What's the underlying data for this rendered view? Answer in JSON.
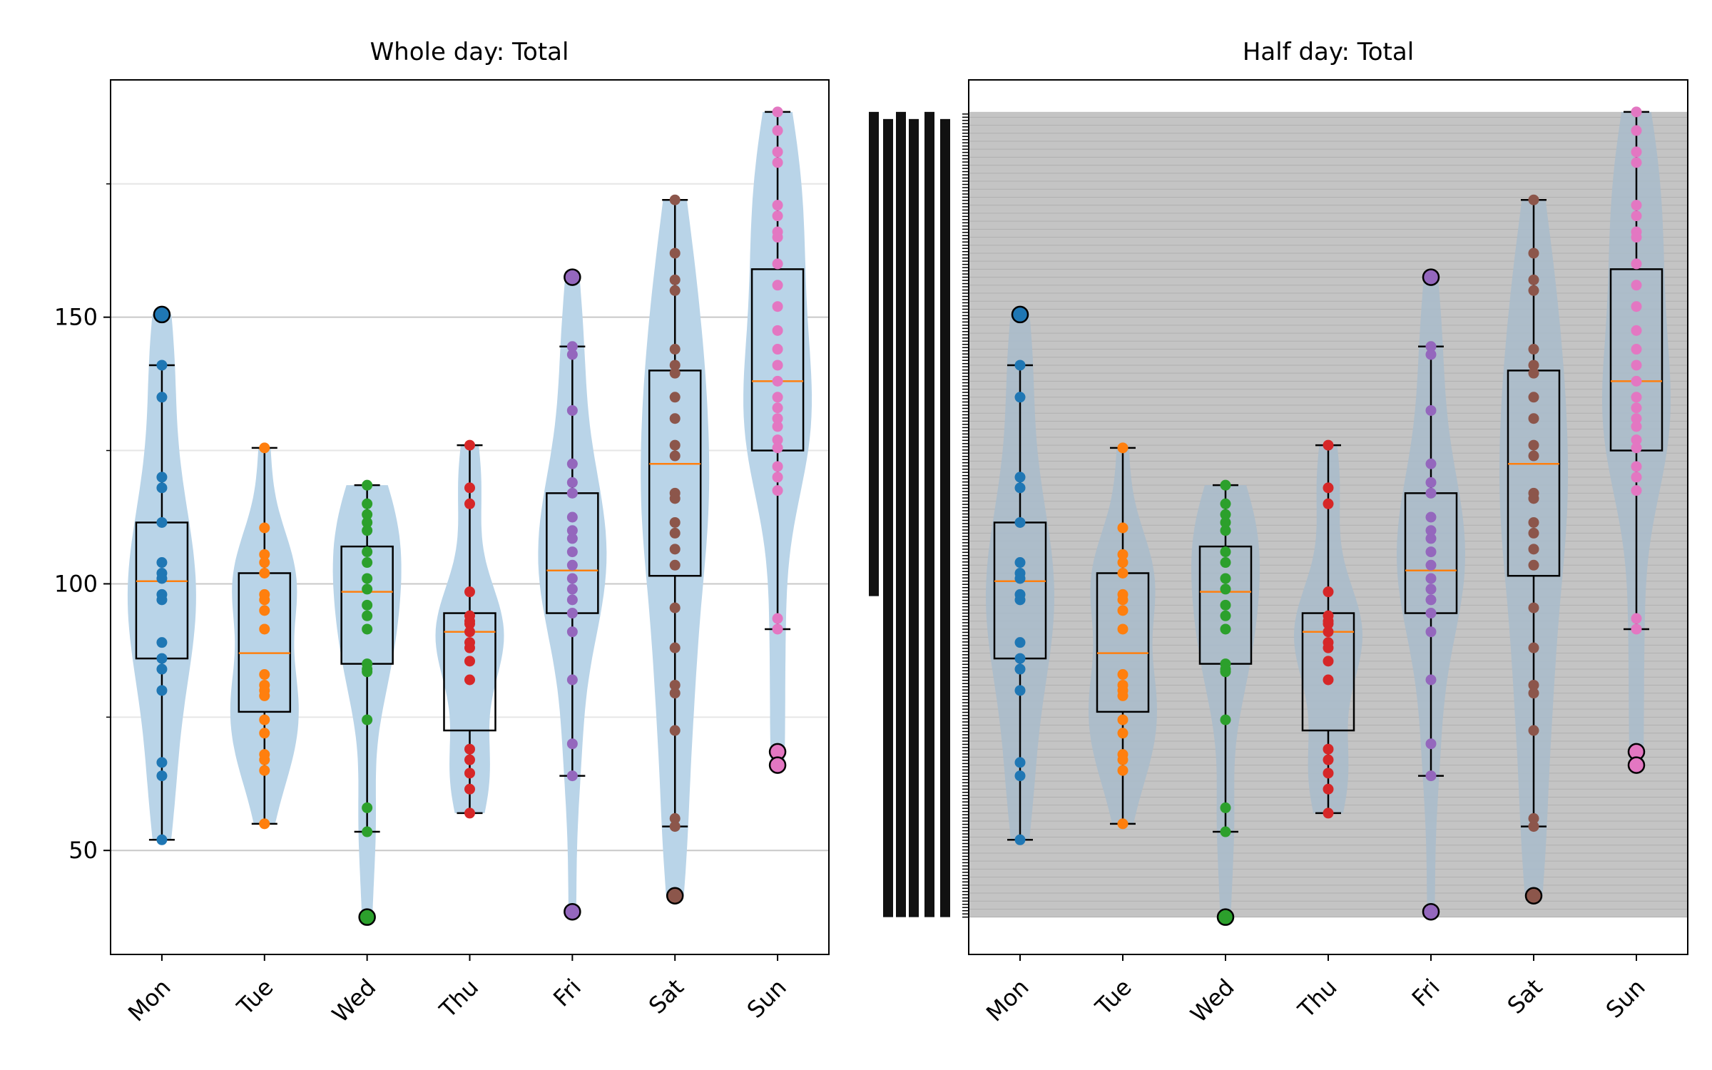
{
  "chart_data": [
    {
      "type": "box+violin+strip",
      "title": "Whole day: Total",
      "xlabel": "",
      "ylabel": "",
      "categories": [
        "Mon",
        "Tue",
        "Wed",
        "Thu",
        "Fri",
        "Sat",
        "Sun"
      ],
      "ylim": [
        30.5,
        194.5
      ],
      "yticks": [
        50,
        100,
        150
      ],
      "ytick_labels": [
        "50",
        "100",
        "150"
      ],
      "minor_yticks": [
        75,
        125,
        175
      ],
      "grid": "horizontal",
      "colors": [
        "#1f77b4",
        "#ff7f0e",
        "#2ca02c",
        "#d62728",
        "#9467bd",
        "#8c564b",
        "#e377c2"
      ],
      "violin_color": "#b9d4e8",
      "median_color": "#ff7f0e",
      "boxes": [
        {
          "q1": 86,
          "median": 100.5,
          "q3": 111.5,
          "whislo": 52,
          "whishi": 141,
          "outliers": [
            150.5
          ]
        },
        {
          "q1": 76,
          "median": 87,
          "q3": 102,
          "whislo": 55,
          "whishi": 125.5,
          "outliers": []
        },
        {
          "q1": 85,
          "median": 98.5,
          "q3": 107,
          "whislo": 53.5,
          "whishi": 118.5,
          "outliers": [
            37.5
          ]
        },
        {
          "q1": 72.5,
          "median": 91,
          "q3": 94.5,
          "whislo": 57,
          "whishi": 126,
          "outliers": []
        },
        {
          "q1": 94.5,
          "median": 102.5,
          "q3": 117,
          "whislo": 64,
          "whishi": 144.5,
          "outliers": [
            157.5,
            38.5
          ]
        },
        {
          "q1": 101.5,
          "median": 122.5,
          "q3": 140,
          "whislo": 54.5,
          "whishi": 172,
          "outliers": [
            41.5
          ]
        },
        {
          "q1": 125,
          "median": 138,
          "q3": 159,
          "whislo": 91.5,
          "whishi": 188.5,
          "outliers": [
            68.5,
            66
          ]
        }
      ],
      "points": [
        [
          150.5,
          141,
          135,
          120,
          118,
          111.5,
          104,
          102,
          101,
          98,
          97,
          89,
          86,
          84,
          80,
          66.5,
          64,
          52
        ],
        [
          125.5,
          110.5,
          105.5,
          104,
          102,
          98,
          97,
          95,
          91.5,
          83,
          81,
          80,
          79,
          74.5,
          72,
          68,
          67,
          65,
          55
        ],
        [
          118.5,
          115,
          113,
          111.5,
          110,
          106,
          104,
          101,
          99,
          96,
          94,
          91.5,
          85,
          84,
          83.5,
          74.5,
          58,
          53.5,
          37.5
        ],
        [
          126,
          118,
          115,
          98.5,
          94,
          93,
          92.5,
          91,
          89,
          88,
          85.5,
          82,
          69,
          67,
          64.5,
          61.5,
          57
        ],
        [
          157.5,
          144.5,
          143,
          132.5,
          122.5,
          119,
          117,
          112.5,
          110,
          108.5,
          106,
          103.5,
          101,
          99,
          97,
          94.5,
          91,
          82,
          70,
          64,
          38.5
        ],
        [
          172,
          162,
          157,
          155,
          144,
          141,
          139.5,
          135,
          131,
          126,
          124,
          117,
          116,
          111.5,
          109.5,
          106.5,
          103.5,
          95.5,
          88,
          81,
          79.5,
          72.5,
          56,
          54.5,
          41.5
        ],
        [
          188.5,
          185,
          181,
          179,
          171,
          169,
          166,
          165,
          160,
          156,
          152,
          147.5,
          144,
          141,
          138,
          135,
          133,
          131,
          129.5,
          127,
          125.5,
          122,
          120,
          117.5,
          93.5,
          91.5,
          68.5,
          66
        ]
      ]
    },
    {
      "type": "box+violin+strip",
      "title": "Half day: Total",
      "xlabel": "",
      "ylabel": "",
      "categories": [
        "Mon",
        "Tue",
        "Wed",
        "Thu",
        "Fri",
        "Sat",
        "Sun"
      ],
      "ylim": [
        30.5,
        194.5
      ],
      "note_visible": "y-axis tick labels are an overlapping illegible stack of dense ticks; shaded band spans the data range",
      "shaded_band_range": [
        37.5,
        188.5
      ],
      "shaded_band_color": "#bdbdbd"
    }
  ]
}
